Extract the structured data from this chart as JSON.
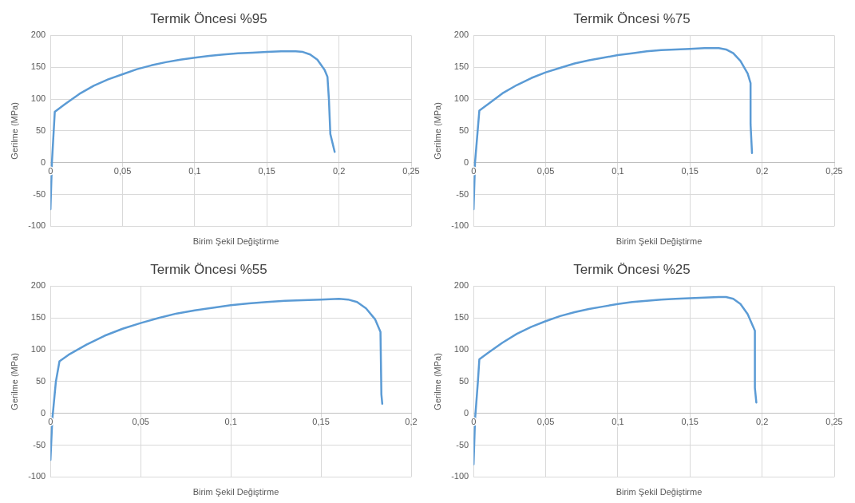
{
  "chart_data": [
    {
      "type": "line",
      "title": "Termik Öncesi %95",
      "xlabel": "Birim Şekil Değiştirme",
      "ylabel": "Gerilme (MPa)",
      "xlim": [
        0,
        0.25
      ],
      "xticks": [
        {
          "value": 0,
          "label": "0"
        },
        {
          "value": 0.05,
          "label": "0,05"
        },
        {
          "value": 0.1,
          "label": "0,1"
        },
        {
          "value": 0.15,
          "label": "0,15"
        },
        {
          "value": 0.2,
          "label": "0,2"
        },
        {
          "value": 0.25,
          "label": "0,25"
        }
      ],
      "ylim": [
        -100,
        200
      ],
      "yticks": [
        -100,
        -50,
        0,
        50,
        100,
        150,
        200
      ],
      "grid": true,
      "marker": "none",
      "line_style": "solid",
      "series": [
        {
          "color": "#5b9bd5",
          "x": [
            0,
            0.001,
            0.003,
            0.01,
            0.02,
            0.03,
            0.04,
            0.05,
            0.06,
            0.07,
            0.08,
            0.09,
            0.1,
            0.11,
            0.12,
            0.13,
            0.14,
            0.15,
            0.16,
            0.17,
            0.175,
            0.18,
            0.185,
            0.19,
            0.192,
            0.193,
            0.194,
            0.197
          ],
          "values": [
            -73,
            0,
            80,
            92,
            108,
            121,
            131,
            139,
            147,
            153,
            158,
            162,
            165,
            168,
            170,
            172,
            173,
            174,
            175,
            175,
            174,
            170,
            162,
            146,
            135,
            100,
            45,
            17
          ]
        }
      ]
    },
    {
      "type": "line",
      "title": "Termik Öncesi %75",
      "xlabel": "Birim Şekil Değiştirme",
      "ylabel": "Gerilme (MPa)",
      "xlim": [
        0,
        0.25
      ],
      "xticks": [
        {
          "value": 0,
          "label": "0"
        },
        {
          "value": 0.05,
          "label": "0,05"
        },
        {
          "value": 0.1,
          "label": "0,1"
        },
        {
          "value": 0.15,
          "label": "0,15"
        },
        {
          "value": 0.2,
          "label": "0,2"
        },
        {
          "value": 0.25,
          "label": "0,25"
        }
      ],
      "ylim": [
        -100,
        200
      ],
      "yticks": [
        -100,
        -50,
        0,
        50,
        100,
        150,
        200
      ],
      "grid": true,
      "marker": "none",
      "line_style": "solid",
      "series": [
        {
          "color": "#5b9bd5",
          "x": [
            0,
            0.001,
            0.004,
            0.01,
            0.02,
            0.03,
            0.04,
            0.05,
            0.06,
            0.07,
            0.08,
            0.09,
            0.1,
            0.11,
            0.12,
            0.13,
            0.14,
            0.15,
            0.16,
            0.17,
            0.175,
            0.18,
            0.185,
            0.19,
            0.192,
            0.192,
            0.193
          ],
          "values": [
            -73,
            0,
            82,
            92,
            109,
            122,
            133,
            142,
            149,
            156,
            161,
            165,
            169,
            172,
            175,
            177,
            178,
            179,
            180,
            180,
            178,
            172,
            160,
            140,
            125,
            60,
            15
          ]
        }
      ]
    },
    {
      "type": "line",
      "title": "Termik Öncesi %55",
      "xlabel": "Birim Şekil Değiştirme",
      "ylabel": "Gerilme (MPa)",
      "xlim": [
        0,
        0.2
      ],
      "xticks": [
        {
          "value": 0,
          "label": "0"
        },
        {
          "value": 0.05,
          "label": "0,05"
        },
        {
          "value": 0.1,
          "label": "0,1"
        },
        {
          "value": 0.15,
          "label": "0,15"
        },
        {
          "value": 0.2,
          "label": "0,2"
        }
      ],
      "ylim": [
        -100,
        200
      ],
      "yticks": [
        -100,
        -50,
        0,
        50,
        100,
        150,
        200
      ],
      "grid": true,
      "marker": "none",
      "line_style": "solid",
      "series": [
        {
          "color": "#5b9bd5",
          "x": [
            0,
            0.001,
            0.003,
            0.005,
            0.01,
            0.02,
            0.03,
            0.04,
            0.05,
            0.06,
            0.07,
            0.08,
            0.09,
            0.1,
            0.11,
            0.12,
            0.13,
            0.14,
            0.15,
            0.16,
            0.165,
            0.17,
            0.175,
            0.18,
            0.183,
            0.1835,
            0.184
          ],
          "values": [
            -73,
            -10,
            50,
            82,
            92,
            108,
            122,
            133,
            142,
            150,
            157,
            162,
            166,
            170,
            173,
            175,
            177,
            178,
            179,
            180,
            179,
            175,
            165,
            148,
            128,
            30,
            15
          ]
        }
      ]
    },
    {
      "type": "line",
      "title": "Termik Öncesi %25",
      "xlabel": "Birim Şekil Değiştirme",
      "ylabel": "Gerilme (MPa)",
      "xlim": [
        0,
        0.25
      ],
      "xticks": [
        {
          "value": 0,
          "label": "0"
        },
        {
          "value": 0.05,
          "label": "0,05"
        },
        {
          "value": 0.1,
          "label": "0,1"
        },
        {
          "value": 0.15,
          "label": "0,15"
        },
        {
          "value": 0.2,
          "label": "0,2"
        },
        {
          "value": 0.25,
          "label": "0,25"
        }
      ],
      "ylim": [
        -100,
        200
      ],
      "yticks": [
        -100,
        -50,
        0,
        50,
        100,
        150,
        200
      ],
      "grid": true,
      "marker": "none",
      "line_style": "solid",
      "series": [
        {
          "color": "#5b9bd5",
          "x": [
            0,
            0.001,
            0.003,
            0.004,
            0.01,
            0.02,
            0.03,
            0.04,
            0.05,
            0.06,
            0.07,
            0.08,
            0.09,
            0.1,
            0.11,
            0.12,
            0.13,
            0.14,
            0.15,
            0.16,
            0.17,
            0.175,
            0.18,
            0.185,
            0.19,
            0.195,
            0.195,
            0.196
          ],
          "values": [
            -80,
            -10,
            50,
            85,
            95,
            111,
            125,
            136,
            145,
            153,
            159,
            164,
            168,
            172,
            175,
            177,
            179,
            180,
            181,
            182,
            183,
            183,
            180,
            172,
            156,
            130,
            40,
            17
          ]
        }
      ]
    }
  ]
}
